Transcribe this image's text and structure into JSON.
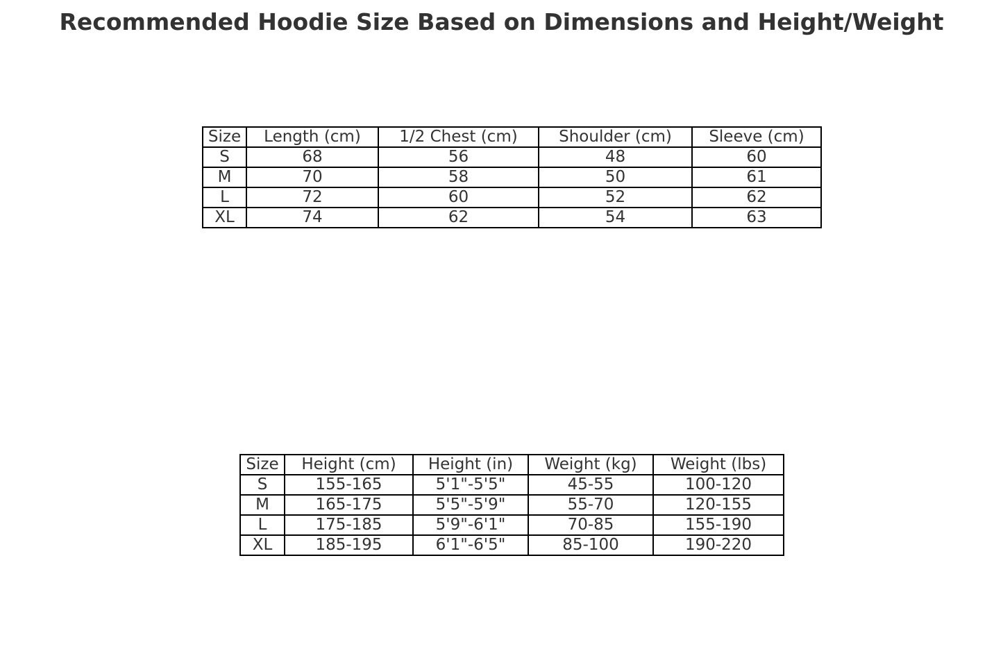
{
  "title": "Recommended Hoodie Size Based on Dimensions and Height/Weight",
  "chart_data": [
    {
      "type": "table",
      "columns": [
        "Size",
        "Length (cm)",
        "1/2 Chest (cm)",
        "Shoulder (cm)",
        "Sleeve (cm)"
      ],
      "rows": [
        [
          "S",
          "68",
          "56",
          "48",
          "60"
        ],
        [
          "M",
          "70",
          "58",
          "50",
          "61"
        ],
        [
          "L",
          "72",
          "60",
          "52",
          "62"
        ],
        [
          "XL",
          "74",
          "62",
          "54",
          "63"
        ]
      ]
    },
    {
      "type": "table",
      "columns": [
        "Size",
        "Height (cm)",
        "Height (in)",
        "Weight (kg)",
        "Weight (lbs)"
      ],
      "rows": [
        [
          "S",
          "155-165",
          "5'1\"-5'5\"",
          "45-55",
          "100-120"
        ],
        [
          "M",
          "165-175",
          "5'5\"-5'9\"",
          "55-70",
          "120-155"
        ],
        [
          "L",
          "175-185",
          "5'9\"-6'1\"",
          "70-85",
          "155-190"
        ],
        [
          "XL",
          "185-195",
          "6'1\"-6'5\"",
          "85-100",
          "190-220"
        ]
      ]
    }
  ]
}
